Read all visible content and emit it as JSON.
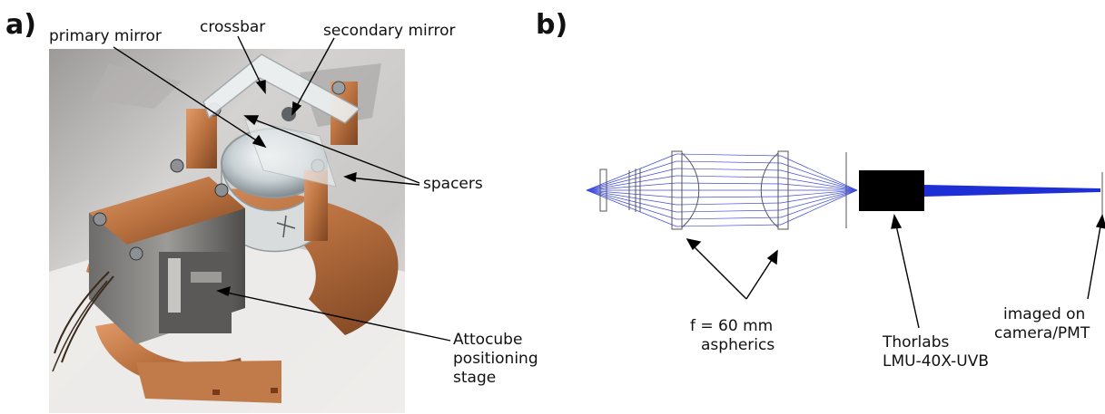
{
  "panel_a": {
    "label": "a)",
    "photo_description_icon": "photo-of-mirror-assembly",
    "labels": {
      "primary_mirror": "primary mirror",
      "crossbar": "crossbar",
      "secondary_mirror": "secondary mirror",
      "spacers": "spacers",
      "attocube_l1": "Attocube",
      "attocube_l2": "positioning",
      "attocube_l3": "stage"
    }
  },
  "panel_b": {
    "label": "b)",
    "labels": {
      "aspherics_l1": "f = 60 mm",
      "aspherics_l2": "aspherics",
      "objective_l1": "Thorlabs",
      "objective_l2": "LMU-40X-UVB",
      "imaged_l1": "imaged on",
      "imaged_l2": "camera/PMT"
    }
  },
  "colors": {
    "copper": "#b8703f",
    "ray_blue": "#1f2fd6",
    "objective_black": "#000000",
    "background_grey": "#b9b7b5"
  }
}
